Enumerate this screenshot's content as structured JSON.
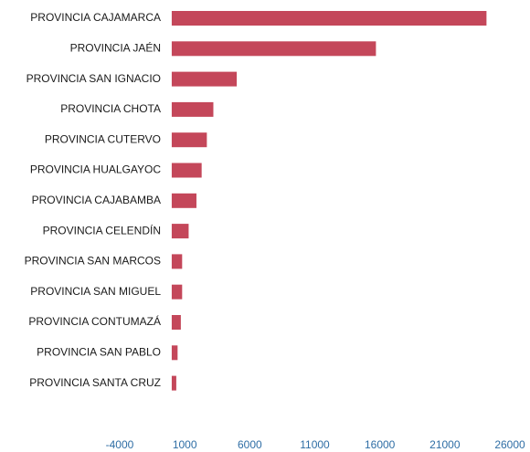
{
  "chart_data": {
    "type": "bar",
    "orientation": "horizontal",
    "categories": [
      "PROVINCIA CAJAMARCA",
      "PROVINCIA JAÉN",
      "PROVINCIA SAN IGNACIO",
      "PROVINCIA CHOTA",
      "PROVINCIA CUTERVO",
      "PROVINCIA HUALGAYOC",
      "PROVINCIA CAJABAMBA",
      "PROVINCIA CELENDÍN",
      "PROVINCIA SAN MARCOS",
      "PROVINCIA SAN MIGUEL",
      "PROVINCIA CONTUMAZÁ",
      "PROVINCIA SAN PABLO",
      "PROVINCIA SANTA CRUZ"
    ],
    "values": [
      24200,
      15700,
      5000,
      3200,
      2700,
      2300,
      1900,
      1300,
      800,
      800,
      700,
      450,
      350
    ],
    "color": "#c4475a",
    "xlim": [
      -4000,
      26000
    ],
    "xticks": [
      -4000,
      1000,
      6000,
      11000,
      16000,
      21000,
      26000
    ],
    "grid": false
  }
}
